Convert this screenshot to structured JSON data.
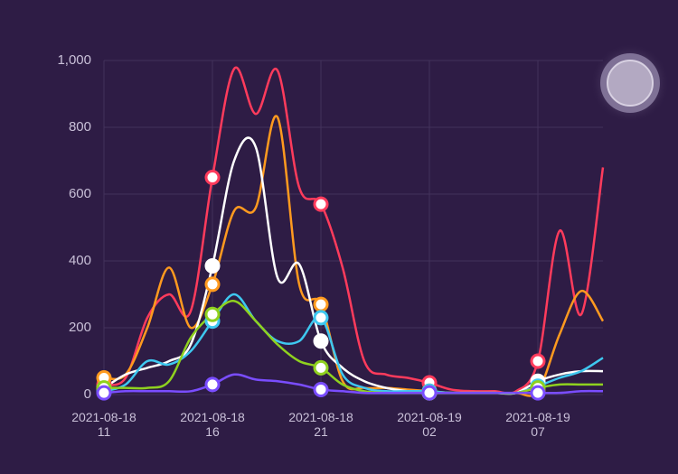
{
  "chart_data": {
    "type": "line",
    "categories": [
      "2021-08-18\n11",
      null,
      null,
      null,
      null,
      "2021-08-18\n16",
      null,
      null,
      null,
      null,
      "2021-08-18\n21",
      null,
      null,
      null,
      null,
      "2021-08-19\n02",
      null,
      null,
      null,
      null,
      "2021-08-19\n07",
      null,
      null,
      null
    ],
    "ylim": [
      0,
      1000
    ],
    "yticks": [
      0,
      200,
      400,
      600,
      800,
      {
        "value": 1000,
        "label": "1,000"
      }
    ],
    "grid": true,
    "series": [
      {
        "color": "#ff3b5c",
        "values": [
          30,
          50,
          230,
          300,
          250,
          650,
          975,
          840,
          970,
          620,
          570,
          380,
          100,
          60,
          50,
          35,
          15,
          10,
          10,
          10,
          100,
          490,
          240,
          680
        ]
      },
      {
        "color": "#ff9a1f",
        "values": [
          50,
          60,
          200,
          380,
          200,
          330,
          550,
          560,
          830,
          330,
          270,
          40,
          20,
          20,
          15,
          10,
          5,
          5,
          5,
          5,
          10,
          180,
          310,
          220
        ]
      },
      {
        "color": "#ffffff",
        "values": [
          20,
          60,
          80,
          100,
          150,
          385,
          700,
          740,
          350,
          390,
          160,
          80,
          40,
          20,
          10,
          5,
          5,
          5,
          5,
          5,
          40,
          60,
          70,
          70
        ]
      },
      {
        "color": "#3ec8f0",
        "values": [
          10,
          30,
          100,
          90,
          130,
          220,
          300,
          220,
          160,
          160,
          230,
          60,
          20,
          10,
          10,
          10,
          5,
          5,
          5,
          5,
          25,
          50,
          70,
          110
        ]
      },
      {
        "color": "#8fd11f",
        "values": [
          20,
          20,
          20,
          40,
          170,
          240,
          280,
          220,
          150,
          100,
          80,
          30,
          10,
          5,
          5,
          5,
          5,
          5,
          5,
          5,
          20,
          30,
          30,
          30
        ]
      },
      {
        "color": "#7a4dff",
        "values": [
          5,
          10,
          10,
          10,
          10,
          30,
          60,
          45,
          40,
          30,
          15,
          10,
          5,
          5,
          5,
          5,
          5,
          5,
          5,
          5,
          5,
          5,
          10,
          10
        ]
      }
    ]
  }
}
